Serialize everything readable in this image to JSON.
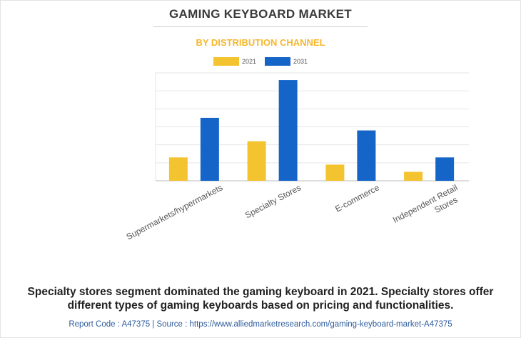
{
  "header": {
    "title": "GAMING KEYBOARD MARKET",
    "subtitle": "BY DISTRIBUTION CHANNEL"
  },
  "colors": {
    "series_2021": "#f4c430",
    "series_2031": "#1565c9",
    "title": "#3a3a3a",
    "subtitle": "#f5b82e",
    "footer": "#2f5d9e"
  },
  "chart_data": {
    "type": "bar",
    "categories": [
      "Supermarkets/hypermarkets",
      "Specialty Stores",
      "E-commerce",
      "Independent Retail Stores"
    ],
    "series": [
      {
        "name": "2021",
        "values": [
          1.3,
          2.2,
          0.9,
          0.5
        ]
      },
      {
        "name": "2031",
        "values": [
          3.5,
          5.6,
          2.8,
          1.3
        ]
      }
    ],
    "title": "GAMING KEYBOARD MARKET",
    "subtitle": "BY DISTRIBUTION CHANNEL",
    "xlabel": "",
    "ylabel": "",
    "ylim": [
      0,
      6
    ],
    "grid": true,
    "legend": "top-center"
  },
  "caption": "Specialty stores segment dominated the gaming keyboard in 2021. Specialty stores offer different types of gaming keyboards based on pricing and functionalities.",
  "footer": "Report Code : A47375  |  Source : https://www.alliedmarketresearch.com/gaming-keyboard-market-A47375"
}
